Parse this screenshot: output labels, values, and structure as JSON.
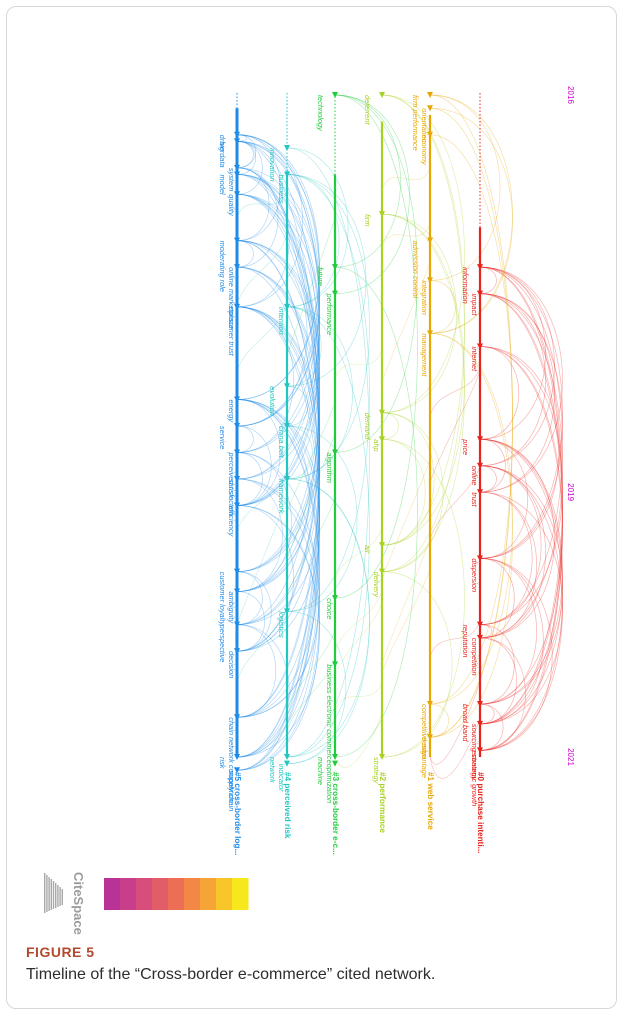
{
  "figure": {
    "label": "FIGURE 5",
    "caption": "Timeline of the “Cross-border e-commerce” cited network."
  },
  "years": {
    "start": "2016",
    "mid": "2019",
    "end": "2021",
    "color": "#d400d4"
  },
  "logo": {
    "text": "CiteSpace"
  },
  "legend_gradient": [
    "#f7e81e",
    "#f9c62a",
    "#f7a437",
    "#f28746",
    "#ec6f55",
    "#e35d68",
    "#d74d7b",
    "#c83e8b",
    "#b93298"
  ],
  "clusters": [
    {
      "id": "#0",
      "label": "#0 purchase intenti...",
      "color": "#e8221c",
      "start": 2017,
      "dotted_start": true,
      "terms": [
        {
          "text": "information",
          "year": 2017.3,
          "side": 1
        },
        {
          "text": "impact",
          "year": 2017.5,
          "side": 0
        },
        {
          "text": "internet",
          "year": 2017.9,
          "side": 0
        },
        {
          "text": "price",
          "year": 2018.6,
          "side": 1
        },
        {
          "text": "online",
          "year": 2018.8,
          "side": 0
        },
        {
          "text": "trust",
          "year": 2019.0,
          "side": 0
        },
        {
          "text": "dispersion",
          "year": 2019.5,
          "side": 0
        },
        {
          "text": "reputation",
          "year": 2020.0,
          "side": 1
        },
        {
          "text": "competition",
          "year": 2020.1,
          "side": 0
        },
        {
          "text": "broad band",
          "year": 2020.6,
          "side": 1
        },
        {
          "text": "sourcing strategy",
          "year": 2020.75,
          "side": 0
        },
        {
          "text": "economic growth",
          "year": 2020.95,
          "side": 0
        }
      ]
    },
    {
      "id": "#1",
      "label": "#1 web service",
      "color": "#e8a700",
      "start": 2016.15,
      "dotted_start": false,
      "terms": [
        {
          "text": "firm performance",
          "year": 2016.0,
          "side": 1
        },
        {
          "text": "orientation",
          "year": 2016.1,
          "side": 0
        },
        {
          "text": "economy",
          "year": 2016.3,
          "side": 0
        },
        {
          "text": "admission control",
          "year": 2017.1,
          "side": 1
        },
        {
          "text": "integration",
          "year": 2017.4,
          "side": 0
        },
        {
          "text": "management",
          "year": 2017.8,
          "side": 0
        },
        {
          "text": "competitive advantage",
          "year": 2020.6,
          "side": 0
        },
        {
          "text": "design",
          "year": 2020.85,
          "side": 0
        }
      ]
    },
    {
      "id": "#2",
      "label": "#2 performance",
      "color": "#a7d21e",
      "start": 2016.2,
      "dotted_start": false,
      "terms": [
        {
          "text": "deterrent",
          "year": 2016.0,
          "side": 1
        },
        {
          "text": "firm",
          "year": 2016.9,
          "side": 1
        },
        {
          "text": "demand",
          "year": 2018.4,
          "side": 1
        },
        {
          "text": "ahp",
          "year": 2018.6,
          "side": 0
        },
        {
          "text": "air",
          "year": 2019.4,
          "side": 1
        },
        {
          "text": "delivery",
          "year": 2019.6,
          "side": 0
        },
        {
          "text": "strategy",
          "year": 2021.0,
          "side": 0
        }
      ]
    },
    {
      "id": "#3",
      "label": "#3 cross-border e-c...",
      "color": "#1fcc3a",
      "start": 2016.6,
      "dotted_start": true,
      "terms": [
        {
          "text": "technology",
          "year": 2016.0,
          "side": 1
        },
        {
          "text": "future",
          "year": 2017.3,
          "side": 1
        },
        {
          "text": "performance",
          "year": 2017.5,
          "side": 0
        },
        {
          "text": "algorithm",
          "year": 2018.7,
          "side": 0
        },
        {
          "text": "choice",
          "year": 2019.8,
          "side": 0
        },
        {
          "text": "business electronic commerce",
          "year": 2020.3,
          "side": 0
        },
        {
          "text": "machine",
          "year": 2021.0,
          "side": 1
        },
        {
          "text": "optimization",
          "year": 2021.05,
          "side": 0
        }
      ]
    },
    {
      "id": "#4",
      "label": "#4 perceived risk",
      "color": "#1fc7c0",
      "start": 2016.6,
      "dotted_start": true,
      "terms": [
        {
          "text": "innovation",
          "year": 2016.4,
          "side": 1
        },
        {
          "text": "business",
          "year": 2016.6,
          "side": 0
        },
        {
          "text": "intention",
          "year": 2017.6,
          "side": 0
        },
        {
          "text": "evolution",
          "year": 2018.2,
          "side": 1
        },
        {
          "text": "china belt",
          "year": 2018.5,
          "side": 0
        },
        {
          "text": "framework",
          "year": 2018.9,
          "side": 0
        },
        {
          "text": "logistics",
          "year": 2019.9,
          "side": 0
        },
        {
          "text": "network",
          "year": 2021.0,
          "side": 1
        },
        {
          "text": "indicator",
          "year": 2021.05,
          "side": 0
        }
      ]
    },
    {
      "id": "#5",
      "label": "#5 cross-border log...",
      "color": "#1f8be8",
      "start": 2016.1,
      "dotted_start": true,
      "terms": [
        {
          "text": "driver",
          "year": 2016.3,
          "side": 1
        },
        {
          "text": "big data",
          "year": 2016.35,
          "side": 1
        },
        {
          "text": "system",
          "year": 2016.55,
          "side": 0
        },
        {
          "text": "quality",
          "year": 2016.75,
          "side": 0
        },
        {
          "text": "model",
          "year": 2016.6,
          "side": 1
        },
        {
          "text": "moderating role",
          "year": 2017.1,
          "side": 1
        },
        {
          "text": "online marketplace",
          "year": 2017.3,
          "side": 0
        },
        {
          "text": "consumer trust",
          "year": 2017.6,
          "side": 0
        },
        {
          "text": "energy",
          "year": 2018.3,
          "side": 0
        },
        {
          "text": "service",
          "year": 2018.5,
          "side": 1
        },
        {
          "text": "perceived risk",
          "year": 2018.7,
          "side": 0
        },
        {
          "text": "satisfaction",
          "year": 2018.9,
          "side": 0
        },
        {
          "text": "efficiency",
          "year": 2019.1,
          "side": 0
        },
        {
          "text": "customer loyalty",
          "year": 2019.6,
          "side": 1
        },
        {
          "text": "ambiguity",
          "year": 2019.75,
          "side": 0
        },
        {
          "text": "decision",
          "year": 2020.2,
          "side": 0
        },
        {
          "text": "perspective",
          "year": 2020.0,
          "side": 1
        },
        {
          "text": "chain network competition",
          "year": 2020.7,
          "side": 0
        },
        {
          "text": "risk",
          "year": 2021.0,
          "side": 1
        },
        {
          "text": "supply chain",
          "year": 2021.1,
          "side": 0
        }
      ]
    }
  ]
}
